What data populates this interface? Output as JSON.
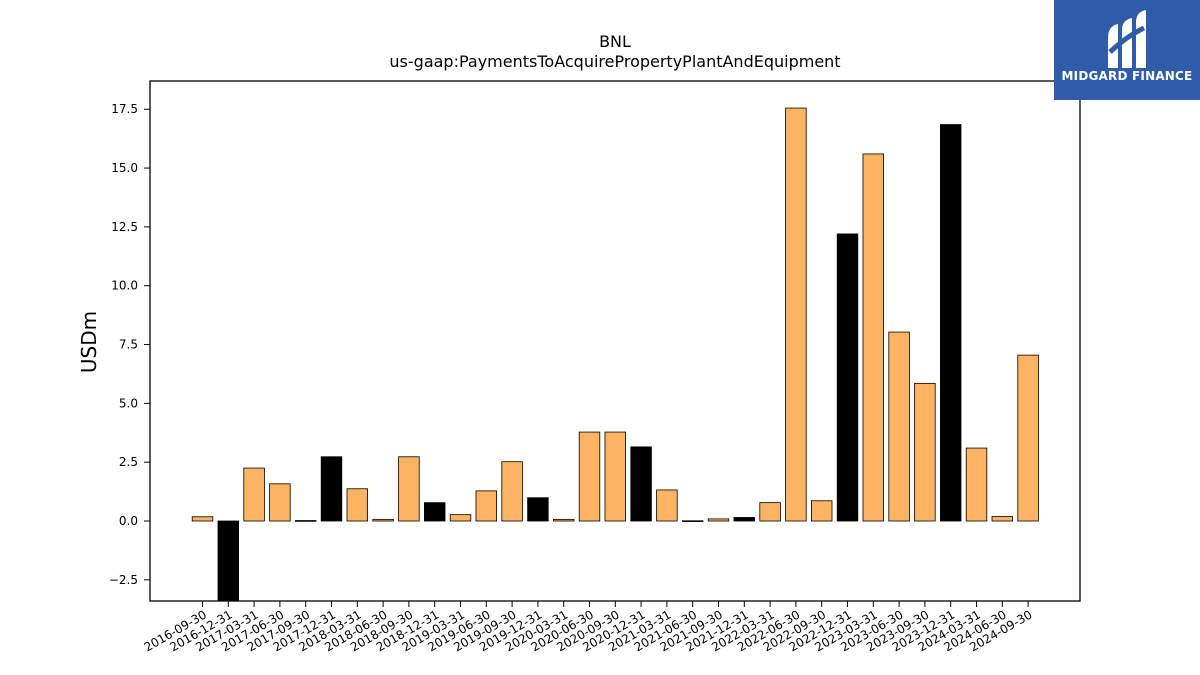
{
  "brand": {
    "name": "MIDGARD FINANCE",
    "bg_color": "#2f5ca8"
  },
  "colors": {
    "positive": "#fdb462",
    "highlight": "#000000",
    "edge": "#000000"
  },
  "chart_data": {
    "type": "bar",
    "title": "BNL",
    "subtitle": "us-gaap:PaymentsToAcquirePropertyPlantAndEquipment",
    "xlabel": "",
    "ylabel": "USDm",
    "ylim": [
      -3.4,
      18.7
    ],
    "yticks": [
      -2.5,
      0.0,
      2.5,
      5.0,
      7.5,
      10.0,
      12.5,
      15.0,
      17.5
    ],
    "ytick_labels": [
      "−2.5",
      "0.0",
      "2.5",
      "5.0",
      "7.5",
      "10.0",
      "12.5",
      "15.0",
      "17.5"
    ],
    "grid": false,
    "categories": [
      "2016-09-30",
      "2016-12-31",
      "2017-03-31",
      "2017-06-30",
      "2017-09-30",
      "2017-12-31",
      "2018-03-31",
      "2018-06-30",
      "2018-09-30",
      "2018-12-31",
      "2019-03-31",
      "2019-06-30",
      "2019-09-30",
      "2019-12-31",
      "2020-03-31",
      "2020-06-30",
      "2020-09-30",
      "2020-12-31",
      "2021-03-31",
      "2021-06-30",
      "2021-09-30",
      "2021-12-31",
      "2022-03-31",
      "2022-06-30",
      "2022-09-30",
      "2022-12-31",
      "2023-03-31",
      "2023-06-30",
      "2023-09-30",
      "2023-12-31",
      "2024-03-31",
      "2024-06-30",
      "2024-09-30"
    ],
    "values": [
      0.18,
      -3.4,
      2.25,
      1.58,
      0.02,
      2.73,
      1.37,
      0.07,
      2.73,
      0.78,
      0.27,
      1.28,
      2.52,
      0.99,
      0.07,
      3.78,
      3.78,
      3.15,
      1.32,
      0.01,
      0.09,
      0.15,
      0.78,
      17.55,
      0.86,
      12.2,
      15.6,
      8.03,
      5.85,
      16.85,
      3.1,
      0.19,
      7.05
    ],
    "fiscal_year_end": [
      false,
      true,
      false,
      false,
      false,
      true,
      false,
      false,
      false,
      true,
      false,
      false,
      false,
      true,
      false,
      false,
      false,
      true,
      false,
      false,
      false,
      true,
      false,
      false,
      false,
      true,
      false,
      false,
      false,
      true,
      false,
      false,
      false
    ]
  }
}
